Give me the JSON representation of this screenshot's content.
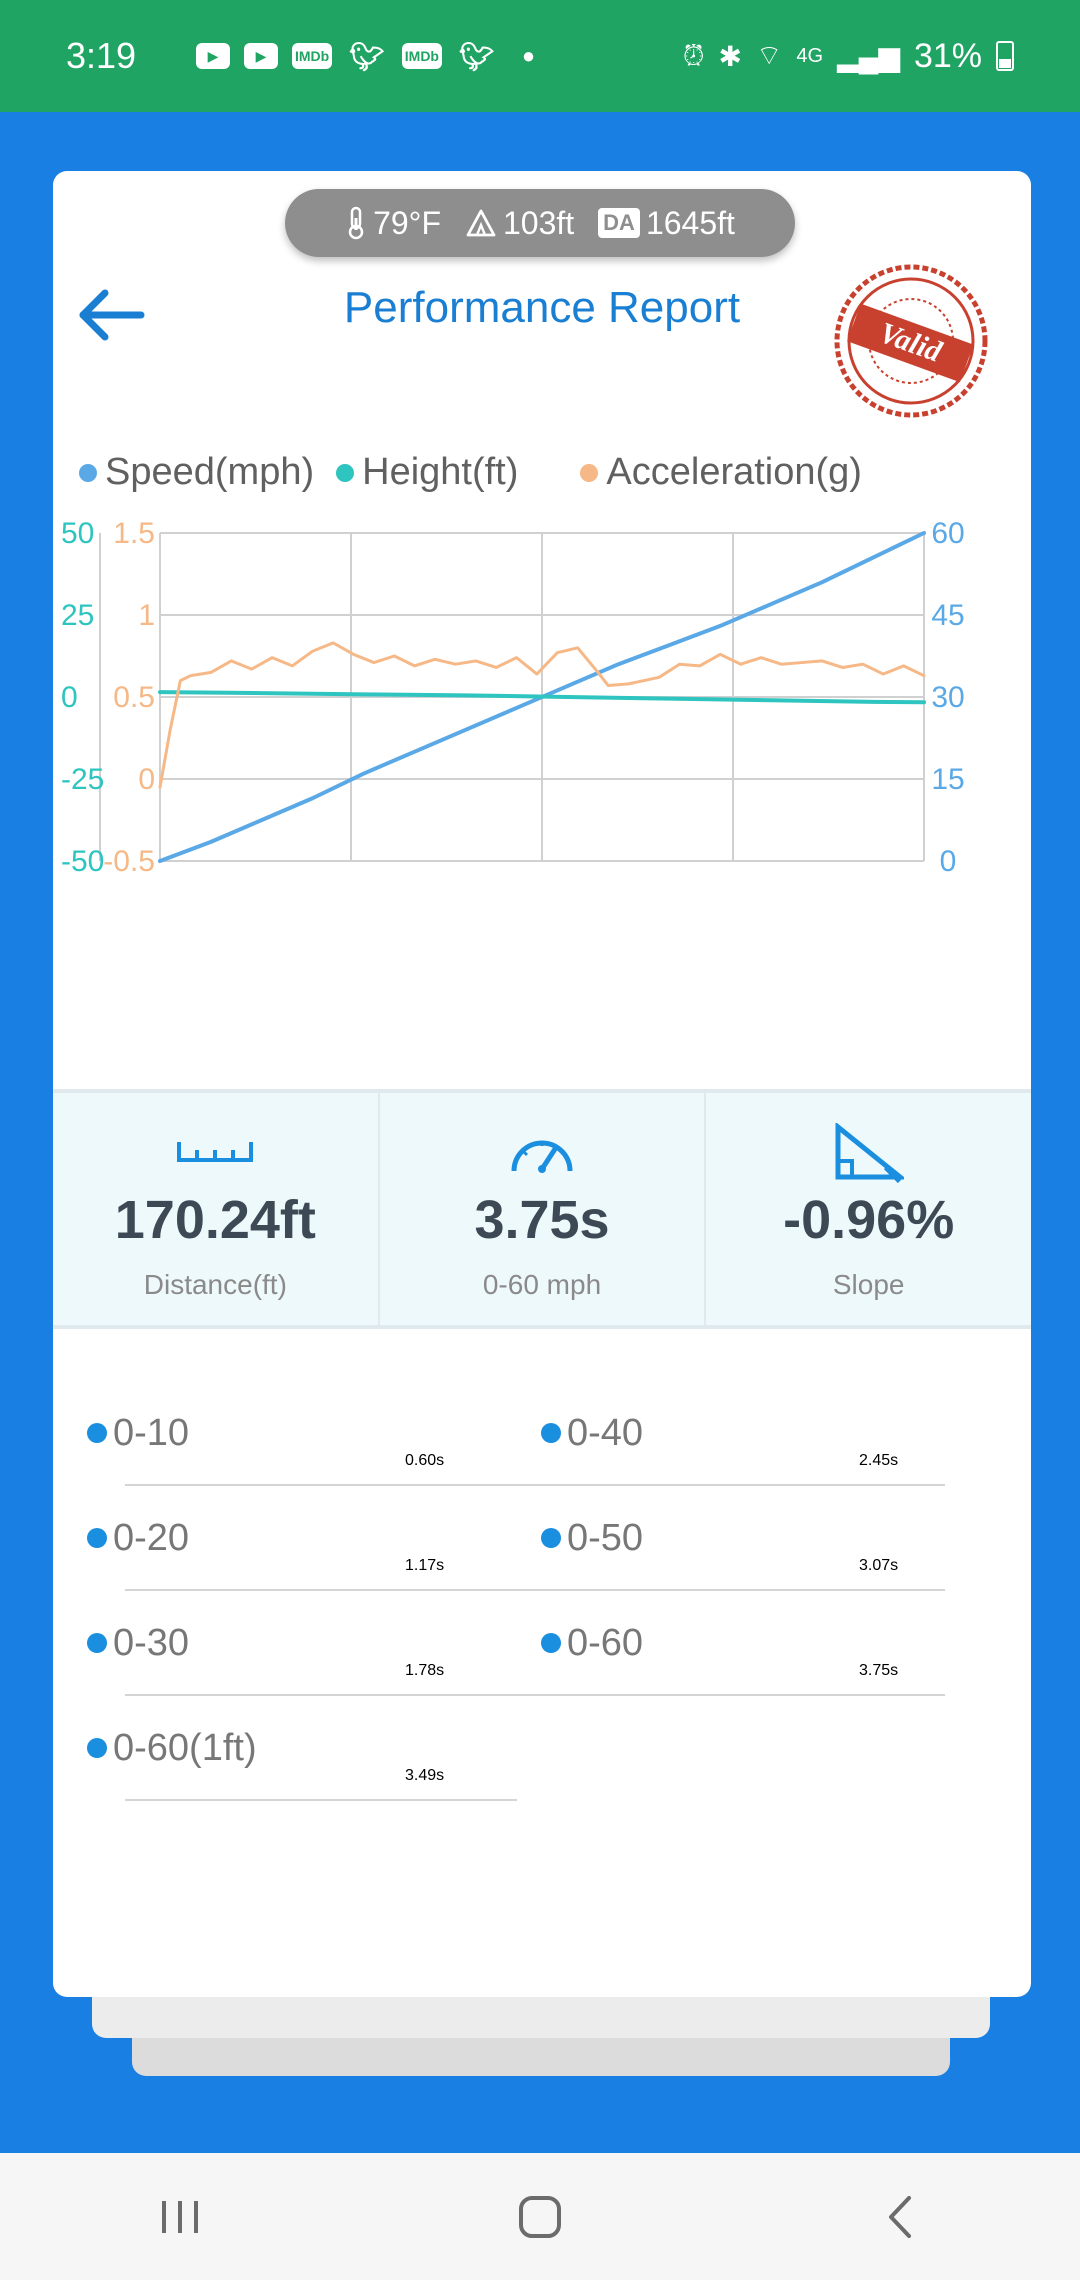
{
  "status_bar": {
    "time": "3:19",
    "notification_icons": [
      "youtube-icon",
      "youtube-icon",
      "imdb-icon",
      "twitter-icon",
      "imdb-icon",
      "twitter-icon",
      "dot-icon"
    ],
    "imdb_label": "IMDb",
    "network": "4G",
    "battery": "31%"
  },
  "env": {
    "temperature": "79°F",
    "elevation": "103ft",
    "da_badge": "DA",
    "density_altitude": "1645ft"
  },
  "header": {
    "title": "Performance Report",
    "stamp_text": "Valid"
  },
  "colors": {
    "speed": "#5aa9e6",
    "height": "#2ec4c0",
    "acceleration": "#f5b886",
    "accent": "#1a7fd3",
    "stamp": "#c8412f"
  },
  "chart_data": {
    "type": "line",
    "legend": [
      "Speed(mph)",
      "Height(ft)",
      "Acceleration(g)"
    ],
    "legend_position": "top",
    "grid": true,
    "axes": {
      "height_left": {
        "ticks": [
          "50",
          "25",
          "0",
          "-25",
          "-50"
        ],
        "range": [
          -50,
          50
        ]
      },
      "accel_left": {
        "ticks": [
          "1.5",
          "1",
          "0.5",
          "0",
          "-0.5"
        ],
        "range": [
          -0.5,
          1.5
        ]
      },
      "speed_right": {
        "ticks": [
          "60",
          "45",
          "30",
          "15",
          "0"
        ],
        "range": [
          0,
          60
        ]
      }
    },
    "x_range": [
      0,
      3.75
    ],
    "series": [
      {
        "name": "Speed(mph)",
        "axis": "speed_right",
        "x": [
          0,
          0.25,
          0.5,
          0.75,
          1.0,
          1.25,
          1.5,
          1.75,
          2.0,
          2.25,
          2.5,
          2.75,
          3.0,
          3.25,
          3.5,
          3.75
        ],
        "y": [
          0,
          3.5,
          7.5,
          11.5,
          16,
          20,
          24,
          28,
          32,
          36,
          39.5,
          43,
          47,
          51,
          55.5,
          60
        ]
      },
      {
        "name": "Height(ft)",
        "axis": "height_left",
        "x": [
          0,
          0.5,
          1.0,
          1.5,
          2.0,
          2.5,
          3.0,
          3.5,
          3.75
        ],
        "y": [
          1.5,
          1.2,
          0.8,
          0.5,
          0.0,
          -0.5,
          -1.0,
          -1.5,
          -1.6
        ]
      },
      {
        "name": "Acceleration(g)",
        "axis": "accel_left",
        "x": [
          0,
          0.05,
          0.1,
          0.15,
          0.25,
          0.35,
          0.45,
          0.55,
          0.65,
          0.75,
          0.85,
          0.95,
          1.05,
          1.15,
          1.25,
          1.35,
          1.45,
          1.55,
          1.65,
          1.75,
          1.85,
          1.95,
          2.05,
          2.15,
          2.2,
          2.3,
          2.45,
          2.55,
          2.65,
          2.75,
          2.85,
          2.95,
          3.05,
          3.15,
          3.25,
          3.35,
          3.45,
          3.55,
          3.65,
          3.75
        ],
        "y": [
          -0.05,
          0.3,
          0.6,
          0.63,
          0.65,
          0.72,
          0.67,
          0.74,
          0.69,
          0.78,
          0.83,
          0.76,
          0.71,
          0.75,
          0.69,
          0.73,
          0.7,
          0.72,
          0.68,
          0.74,
          0.64,
          0.77,
          0.8,
          0.65,
          0.57,
          0.58,
          0.62,
          0.7,
          0.69,
          0.76,
          0.7,
          0.74,
          0.7,
          0.71,
          0.72,
          0.68,
          0.7,
          0.64,
          0.69,
          0.63
        ]
      }
    ]
  },
  "stats": [
    {
      "icon": "ruler-icon",
      "value": "170.24ft",
      "label": "Distance(ft)"
    },
    {
      "icon": "speedometer-icon",
      "value": "3.75s",
      "label": "0-60 mph"
    },
    {
      "icon": "slope-icon",
      "value": "-0.96%",
      "label": "Slope"
    }
  ],
  "splits": [
    {
      "name": "0-10",
      "time": "0.60s"
    },
    {
      "name": "0-40",
      "time": "2.45s"
    },
    {
      "name": "0-20",
      "time": "1.17s"
    },
    {
      "name": "0-50",
      "time": "3.07s"
    },
    {
      "name": "0-30",
      "time": "1.78s"
    },
    {
      "name": "0-60",
      "time": "3.75s"
    },
    {
      "name": "0-60(1ft)",
      "time": "3.49s"
    }
  ]
}
